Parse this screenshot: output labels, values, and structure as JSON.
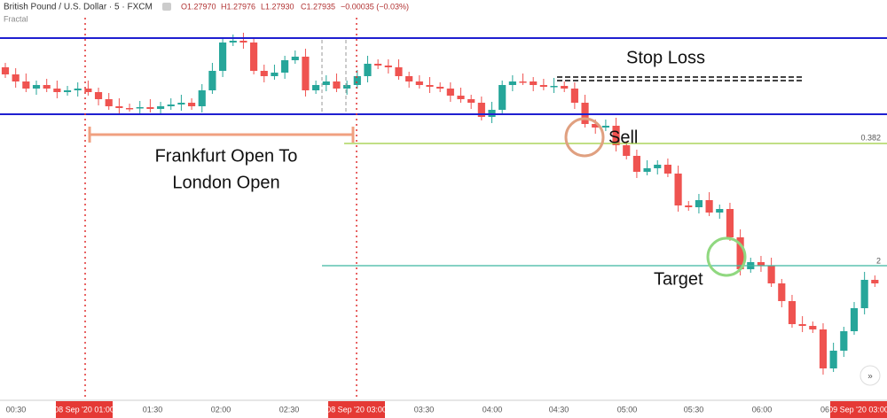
{
  "header": {
    "symbol": "British Pound / U.S. Dollar · 5 · FXCM",
    "open": "O1.27970",
    "high": "H1.27976",
    "low": "L1.27930",
    "close": "C1.27935",
    "change": "−0.00035 (−0.03%)",
    "indicator": "Fractal"
  },
  "annotations": {
    "stop_loss": "Stop Loss",
    "sell": "Sell",
    "session_line1": "Frankfurt Open To",
    "session_line2": "London Open",
    "target": "Target",
    "fib_382": "0.382",
    "fib_2": "2"
  },
  "time_axis": {
    "labels": [
      "00:30",
      "08 Sep '20  01:00",
      "01:30",
      "02:00",
      "02:30",
      "08 Sep '20  03:00",
      "03:30",
      "04:00",
      "04:30",
      "05:00",
      "05:30",
      "06:00",
      "06",
      "09 Sep '20  03:00"
    ]
  }
}
